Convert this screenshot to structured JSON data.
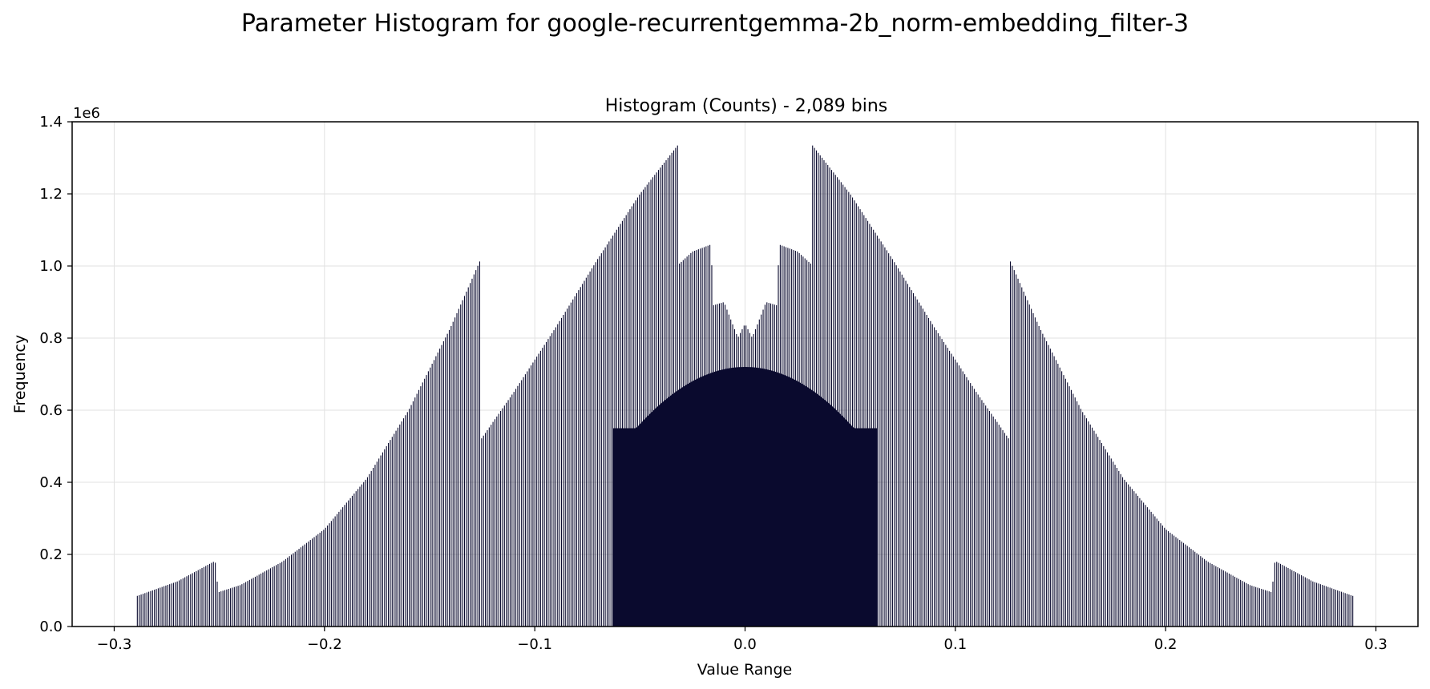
{
  "figure": {
    "title": "Parameter Histogram for google-recurrentgemma-2b_norm-embedding_filter-3"
  },
  "chart_data": {
    "type": "bar",
    "title": "Histogram (Counts) - 2,089 bins",
    "xlabel": "Value Range",
    "ylabel": "Frequency",
    "y_offset_label": "1e6",
    "xlim": [
      -0.32,
      0.32
    ],
    "ylim": [
      0,
      1.4
    ],
    "y_unit_multiplier": 1000000,
    "xticks": [
      -0.3,
      -0.2,
      -0.1,
      0.0,
      0.1,
      0.2,
      0.3
    ],
    "xtick_labels": [
      "−0.3",
      "−0.2",
      "−0.1",
      "0.0",
      "0.1",
      "0.2",
      "0.3"
    ],
    "yticks": [
      0.0,
      0.2,
      0.4,
      0.6,
      0.8,
      1.0,
      1.2,
      1.4
    ],
    "ytick_labels": [
      "0.0",
      "0.2",
      "0.4",
      "0.6",
      "0.8",
      "1.0",
      "1.2",
      "1.4"
    ],
    "grid": true,
    "bar_color": "#0a0a2e",
    "bin_count": 2089,
    "envelope_x": [
      -0.289,
      -0.27,
      -0.252,
      -0.2505,
      -0.24,
      -0.22,
      -0.2,
      -0.18,
      -0.16,
      -0.14,
      -0.126,
      -0.1255,
      -0.11,
      -0.09,
      -0.07,
      -0.05,
      -0.032,
      -0.0315,
      -0.025,
      -0.016,
      -0.0155,
      -0.01,
      -0.004,
      -0.0035,
      0.0,
      0.0035,
      0.004,
      0.01,
      0.0155,
      0.016,
      0.025,
      0.0315,
      0.032,
      0.05,
      0.07,
      0.09,
      0.11,
      0.1255,
      0.126,
      0.14,
      0.16,
      0.18,
      0.2,
      0.22,
      0.24,
      0.2505,
      0.252,
      0.27,
      0.289
    ],
    "envelope_y": [
      0.085,
      0.125,
      0.182,
      0.095,
      0.115,
      0.18,
      0.27,
      0.41,
      0.6,
      0.83,
      1.015,
      0.52,
      0.65,
      0.83,
      1.02,
      1.2,
      1.335,
      1.005,
      1.04,
      1.06,
      0.89,
      0.9,
      0.81,
      0.8,
      0.84,
      0.8,
      0.81,
      0.9,
      0.89,
      1.06,
      1.04,
      1.005,
      1.335,
      1.2,
      1.02,
      0.83,
      0.65,
      0.52,
      1.015,
      0.83,
      0.6,
      0.41,
      0.27,
      0.18,
      0.115,
      0.095,
      0.182,
      0.125,
      0.085
    ],
    "base_dome": {
      "peak": 0.72,
      "half_width": 0.063
    }
  }
}
